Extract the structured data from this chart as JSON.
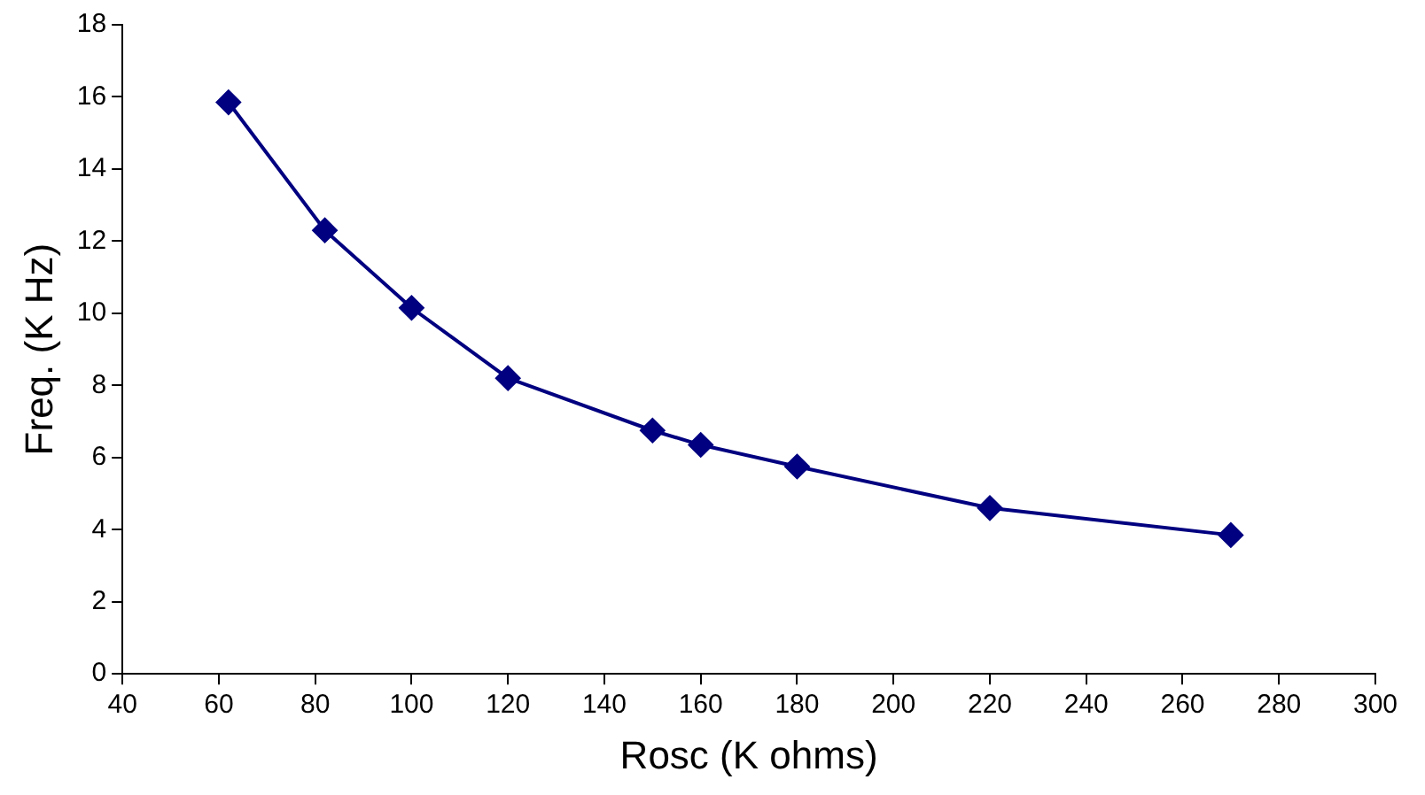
{
  "chart_data": {
    "type": "line",
    "xlabel": "Rosc (K ohms)",
    "ylabel": "Freq. (K Hz)",
    "x": [
      62,
      82,
      100,
      120,
      150,
      160,
      180,
      220,
      270
    ],
    "series": [
      {
        "color": "#000080",
        "values": [
          15.85,
          12.3,
          10.15,
          8.2,
          6.75,
          6.35,
          5.75,
          4.6,
          3.85
        ]
      }
    ],
    "xlim": [
      40,
      300
    ],
    "xticks": [
      40,
      60,
      80,
      100,
      120,
      140,
      160,
      180,
      200,
      220,
      240,
      260,
      280,
      300
    ],
    "ylim": [
      0,
      18
    ],
    "yticks": [
      0,
      2,
      4,
      6,
      8,
      10,
      12,
      14,
      16,
      18
    ],
    "grid": false,
    "legend": false,
    "marker": "diamond",
    "line_style": "solid"
  }
}
